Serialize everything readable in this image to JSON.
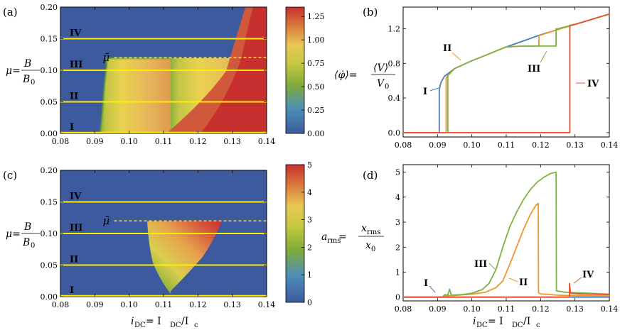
{
  "panel_labels": {
    "a": "(a)",
    "b": "(b)",
    "c": "(c)",
    "d": "(d)"
  },
  "colors": {
    "I": "#4a7cc0",
    "II": "#f0962a",
    "III": "#7cb342",
    "IV": "#e8542e",
    "yellow_line": "#ffec00",
    "map_low": "#3d5a9e",
    "map_mid_green": "#7faa3a",
    "map_yellow": "#e8d34a",
    "map_red": "#c8302f"
  },
  "chart_data": [
    {
      "panel": "a",
      "type": "heatmap",
      "title": "",
      "xlabel": "i_DC = I_DC/I_c",
      "ylabel": "μ = B/B0",
      "xlim": [
        0.08,
        0.14
      ],
      "ylim": [
        0.0,
        0.2
      ],
      "xticks": [
        "0.08",
        "0.09",
        "0.10",
        "0.11",
        "0.12",
        "0.13",
        "0.14"
      ],
      "yticks": [
        "0.00",
        "0.05",
        "0.10",
        "0.15",
        "0.20"
      ],
      "colorbar": {
        "min": 0.0,
        "max": 1.35,
        "ticks": [
          "0.00",
          "0.25",
          "0.50",
          "0.75",
          "1.00",
          "1.25"
        ]
      },
      "horizontal_lines": [
        {
          "label": "I",
          "mu": 0.0
        },
        {
          "label": "II",
          "mu": 0.05
        },
        {
          "label": "III",
          "mu": 0.1
        },
        {
          "label": "IV",
          "mu": 0.15
        }
      ],
      "mu_bar": {
        "label": "μ̄",
        "mu": 0.12,
        "x_start": 0.095
      }
    },
    {
      "panel": "b",
      "type": "line",
      "title": "",
      "xlabel": "",
      "ylabel": "⟨φ̇⟩ = ⟨V⟩/V0",
      "xlim": [
        0.08,
        0.14
      ],
      "ylim": [
        -0.05,
        1.45
      ],
      "xticks": [
        "0.08",
        "0.09",
        "0.10",
        "0.11",
        "0.12",
        "0.13",
        "0.14"
      ],
      "yticks": [
        "0.0",
        "0.4",
        "0.8",
        "1.2"
      ],
      "series": [
        {
          "name": "I",
          "x": [
            0.08,
            0.0905,
            0.0905,
            0.091,
            0.092,
            0.095,
            0.1,
            0.105,
            0.11,
            0.115,
            0.12,
            0.125,
            0.13,
            0.135,
            0.14
          ],
          "y": [
            0,
            0,
            0.5,
            0.58,
            0.65,
            0.74,
            0.83,
            0.91,
            0.99,
            1.06,
            1.13,
            1.19,
            1.25,
            1.31,
            1.37
          ]
        },
        {
          "name": "II",
          "x": [
            0.08,
            0.0925,
            0.0925,
            0.093,
            0.095,
            0.1,
            0.105,
            0.11,
            0.115,
            0.1195,
            0.1195,
            0.125,
            0.13,
            0.135,
            0.14
          ],
          "y": [
            0,
            0,
            0.63,
            0.66,
            0.74,
            0.83,
            0.91,
            0.99,
            1.0,
            1.0,
            1.12,
            1.19,
            1.25,
            1.31,
            1.37
          ]
        },
        {
          "name": "III",
          "x": [
            0.08,
            0.093,
            0.093,
            0.095,
            0.1,
            0.105,
            0.108,
            0.11,
            0.115,
            0.12,
            0.1245,
            0.1245,
            0.125,
            0.13,
            0.135,
            0.14
          ],
          "y": [
            0,
            0,
            0.66,
            0.74,
            0.83,
            0.91,
            0.96,
            0.99,
            1.0,
            1.0,
            1.0,
            1.2,
            1.2,
            1.25,
            1.31,
            1.37
          ]
        },
        {
          "name": "IV",
          "x": [
            0.08,
            0.1285,
            0.1285,
            0.13,
            0.135,
            0.14
          ],
          "y": [
            0,
            0,
            1.24,
            1.25,
            1.31,
            1.37
          ]
        }
      ]
    },
    {
      "panel": "c",
      "type": "heatmap",
      "title": "",
      "xlabel": "i_DC = I_DC/I_c",
      "ylabel": "μ = B/B0",
      "xlim": [
        0.08,
        0.14
      ],
      "ylim": [
        0.0,
        0.2
      ],
      "xticks": [
        "0.08",
        "0.09",
        "0.10",
        "0.11",
        "0.12",
        "0.13",
        "0.14"
      ],
      "yticks": [
        "0.00",
        "0.05",
        "0.10",
        "0.15",
        "0.20"
      ],
      "colorbar": {
        "min": 0,
        "max": 5,
        "ticks": [
          "0",
          "1",
          "2",
          "3",
          "4",
          "5"
        ]
      },
      "horizontal_lines": [
        {
          "label": "I",
          "mu": 0.0
        },
        {
          "label": "II",
          "mu": 0.05
        },
        {
          "label": "III",
          "mu": 0.1
        },
        {
          "label": "IV",
          "mu": 0.15
        }
      ],
      "mu_bar": {
        "label": "μ̄",
        "mu": 0.12,
        "x_start": 0.095
      }
    },
    {
      "panel": "d",
      "type": "line",
      "title": "",
      "xlabel": "i_DC = I_DC/I_c",
      "ylabel": "a_rms = x_rms/x0",
      "xlim": [
        0.08,
        0.14
      ],
      "ylim": [
        -0.15,
        5.3
      ],
      "xticks": [
        "0.08",
        "0.09",
        "0.10",
        "0.11",
        "0.12",
        "0.13",
        "0.14"
      ],
      "yticks": [
        "0",
        "1",
        "2",
        "3",
        "4",
        "5"
      ],
      "series": [
        {
          "name": "I",
          "x": [
            0.08,
            0.14
          ],
          "y": [
            0.0,
            0.0
          ]
        },
        {
          "name": "II",
          "x": [
            0.08,
            0.0915,
            0.092,
            0.095,
            0.1,
            0.104,
            0.107,
            0.109,
            0.111,
            0.113,
            0.115,
            0.117,
            0.1185,
            0.1193,
            0.1194,
            0.12,
            0.125,
            0.13,
            0.135,
            0.14
          ],
          "y": [
            0,
            0,
            0.05,
            0.07,
            0.12,
            0.2,
            0.38,
            0.65,
            1.3,
            2.0,
            2.7,
            3.3,
            3.65,
            3.75,
            0.18,
            0.13,
            0.08,
            0.06,
            0.05,
            0.05
          ]
        },
        {
          "name": "III",
          "x": [
            0.08,
            0.0915,
            0.092,
            0.093,
            0.0935,
            0.094,
            0.097,
            0.1,
            0.103,
            0.105,
            0.107,
            0.109,
            0.111,
            0.113,
            0.115,
            0.117,
            0.119,
            0.121,
            0.123,
            0.1245,
            0.1246,
            0.127,
            0.13,
            0.135,
            0.14
          ],
          "y": [
            0,
            0,
            0.1,
            0.08,
            0.32,
            0.08,
            0.1,
            0.16,
            0.3,
            0.55,
            1.1,
            2.0,
            2.8,
            3.4,
            3.9,
            4.3,
            4.6,
            4.8,
            4.95,
            5.0,
            0.25,
            0.2,
            0.18,
            0.15,
            0.12
          ]
        },
        {
          "name": "IV",
          "x": [
            0.08,
            0.1284,
            0.1284,
            0.1287,
            0.13,
            0.135,
            0.14
          ],
          "y": [
            0,
            0,
            0.55,
            0.15,
            0.14,
            0.12,
            0.1
          ]
        }
      ]
    }
  ],
  "axis_text": {
    "mu_lhs": "μ=",
    "mu_num": "B",
    "mu_den": "B",
    "mu_den_sub": "0",
    "phi_lhs": "⟨φ̇⟩=",
    "phi_num": "⟨V⟩",
    "phi_den": "V",
    "phi_den_sub": "0",
    "arms_lhs": "a",
    "arms_lhs_sub": "rms",
    "arms_eq": " =",
    "arms_num": "x",
    "arms_num_sub": "rms",
    "arms_den": "x",
    "arms_den_sub": "0",
    "idc": "i",
    "idc_sub": "DC",
    "idc_eq": " = I",
    "idc_sub2": "DC",
    "idc_over": "/I",
    "idc_sub3": "c"
  },
  "curve_labels": {
    "I": "I",
    "II": "II",
    "III": "III",
    "IV": "IV",
    "mu_bar": "μ̄"
  }
}
